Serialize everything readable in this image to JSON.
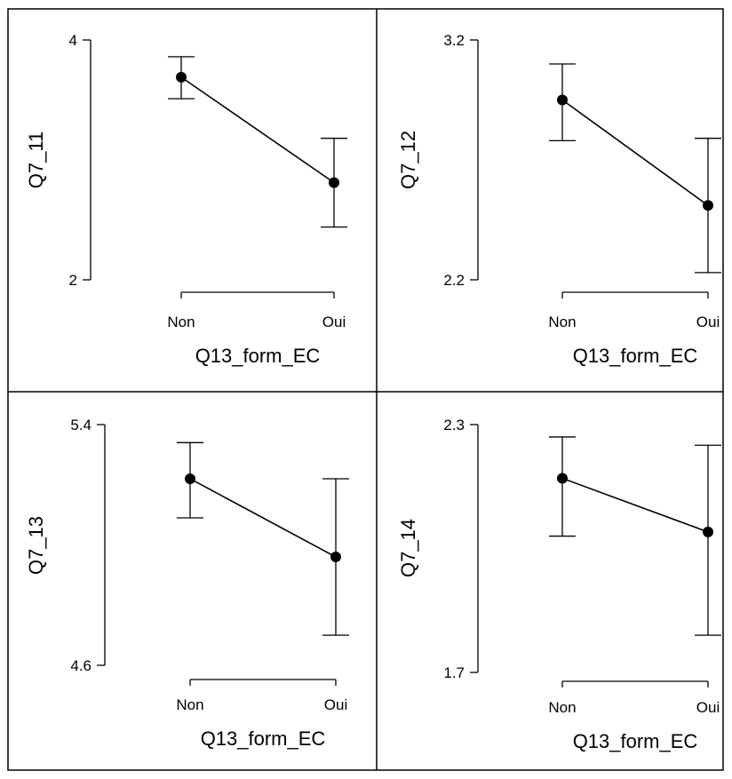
{
  "chart_data": [
    {
      "type": "line",
      "xlabel": "Q13_form_EC",
      "ylabel": "Q7_11",
      "categories": [
        "Non",
        "Oui"
      ],
      "ylim": [
        2,
        4
      ],
      "yticks": [
        "4",
        "2"
      ],
      "series": [
        {
          "values": [
            3.69,
            2.81
          ],
          "lower": [
            3.51,
            2.44
          ],
          "upper": [
            3.86,
            3.18
          ]
        }
      ]
    },
    {
      "type": "line",
      "xlabel": "Q13_form_EC",
      "ylabel": "Q7_12",
      "categories": [
        "Non",
        "Oui"
      ],
      "ylim": [
        2.2,
        3.2
      ],
      "yticks": [
        "3.2",
        "2.2"
      ],
      "series": [
        {
          "values": [
            2.95,
            2.51
          ],
          "lower": [
            2.78,
            2.23
          ],
          "upper": [
            3.1,
            2.79
          ]
        }
      ]
    },
    {
      "type": "line",
      "xlabel": "Q13_form_EC",
      "ylabel": "Q7_13",
      "categories": [
        "Non",
        "Oui"
      ],
      "ylim": [
        4.6,
        5.4
      ],
      "yticks": [
        "5.4",
        "4.6"
      ],
      "series": [
        {
          "values": [
            5.22,
            4.96
          ],
          "lower": [
            5.09,
            4.7
          ],
          "upper": [
            5.34,
            5.22
          ]
        }
      ]
    },
    {
      "type": "line",
      "xlabel": "Q13_form_EC",
      "ylabel": "Q7_14",
      "categories": [
        "Non",
        "Oui"
      ],
      "ylim": [
        1.7,
        2.3
      ],
      "yticks": [
        "2.3",
        "1.7"
      ],
      "series": [
        {
          "values": [
            2.17,
            2.04
          ],
          "lower": [
            2.03,
            1.79
          ],
          "upper": [
            2.27,
            2.25
          ]
        }
      ]
    }
  ]
}
